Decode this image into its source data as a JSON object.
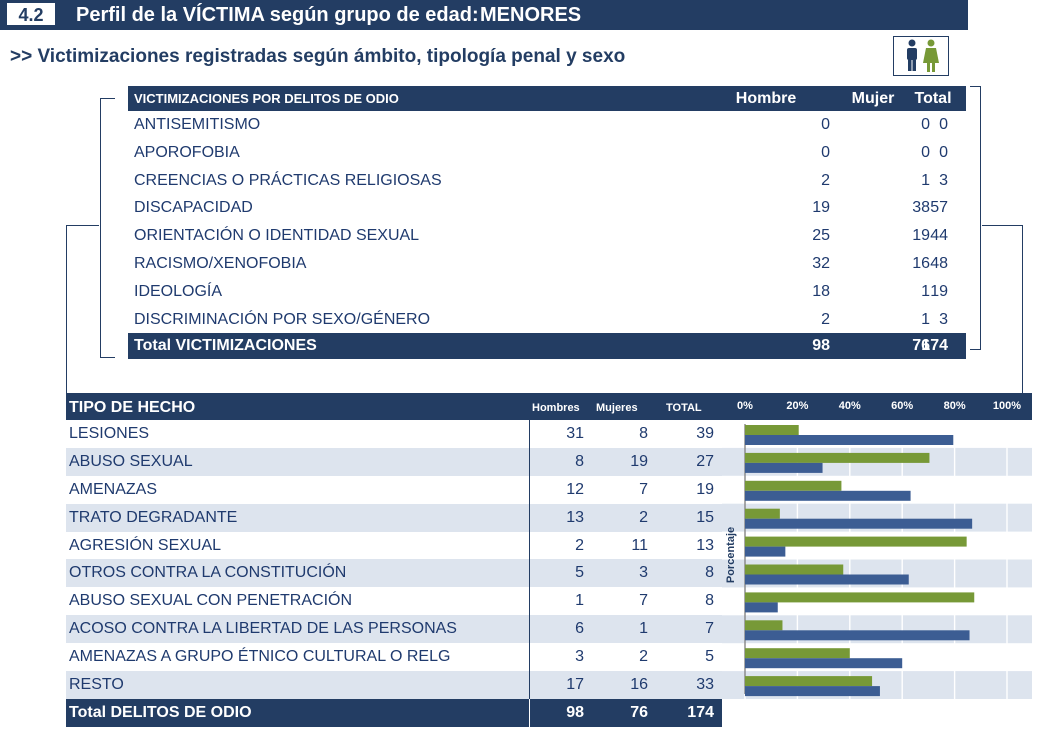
{
  "header": {
    "number": "4.2",
    "title": "Perfil de la VÍCTIMA según grupo de edad:",
    "group": "MENORES"
  },
  "subtitle": ">> Victimizaciones registradas según ámbito, tipología  penal y sexo",
  "icon": "male-female-icon",
  "colors": {
    "navy": "#233d63",
    "hombre": "#3c5d93",
    "mujer": "#779937",
    "band": "#dde4ee"
  },
  "table_ambito": {
    "headers": [
      "VICTIMIZACIONES POR DELITOS DE ODIO",
      "Hombre",
      "Mujer",
      "Total"
    ],
    "rows": [
      [
        "ANTISEMITISMO",
        "0",
        "0",
        "0"
      ],
      [
        "APOROFOBIA",
        "0",
        "0",
        "0"
      ],
      [
        "CREENCIAS O PRÁCTICAS RELIGIOSAS",
        "2",
        "1",
        "3"
      ],
      [
        "DISCAPACIDAD",
        "19",
        "38",
        "57"
      ],
      [
        "ORIENTACIÓN O IDENTIDAD SEXUAL",
        "25",
        "19",
        "44"
      ],
      [
        "RACISMO/XENOFOBIA",
        "32",
        "16",
        "48"
      ],
      [
        "IDEOLOGÍA",
        "18",
        "1",
        "19"
      ],
      [
        "DISCRIMINACIÓN POR SEXO/GÉNERO",
        "2",
        "1",
        "3"
      ]
    ],
    "total": [
      "Total VICTIMIZACIONES",
      "98",
      "76",
      "174"
    ]
  },
  "table_hecho": {
    "headers": [
      "TIPO DE HECHO",
      "Hombres",
      "Mujeres",
      "TOTAL"
    ],
    "rows": [
      [
        "LESIONES",
        "31",
        "8",
        "39"
      ],
      [
        "ABUSO SEXUAL",
        "8",
        "19",
        "27"
      ],
      [
        "AMENAZAS",
        "12",
        "7",
        "19"
      ],
      [
        "TRATO DEGRADANTE",
        "13",
        "2",
        "15"
      ],
      [
        "AGRESIÓN SEXUAL",
        "2",
        "11",
        "13"
      ],
      [
        "OTROS CONTRA LA CONSTITUCIÓN",
        "5",
        "3",
        "8"
      ],
      [
        "ABUSO SEXUAL CON PENETRACIÓN",
        "1",
        "7",
        "8"
      ],
      [
        "ACOSO CONTRA LA LIBERTAD DE LAS PERSONAS",
        "6",
        "1",
        "7"
      ],
      [
        "AMENAZAS A GRUPO ÉTNICO CULTURAL O RELG",
        "3",
        "2",
        "5"
      ],
      [
        "RESTO",
        "17",
        "16",
        "33"
      ]
    ],
    "total": [
      "Total DELITOS DE ODIO",
      "98",
      "76",
      "174"
    ]
  },
  "chart_data": {
    "type": "bar",
    "orientation": "horizontal",
    "xlabel_ticks": [
      "0%",
      "20%",
      "40%",
      "60%",
      "80%",
      "100%"
    ],
    "ylabel": "Porcentaje",
    "xlim": [
      0,
      100
    ],
    "categories": [
      "LESIONES",
      "ABUSO SEXUAL",
      "AMENAZAS",
      "TRATO DEGRADANTE",
      "AGRESIÓN SEXUAL",
      "OTROS CONTRA LA CONSTITUCIÓN",
      "ABUSO SEXUAL CON PENETRACIÓN",
      "ACOSO CONTRA LA LIBERTAD DE LAS PERSONAS",
      "AMENAZAS A GRUPO ÉTNICO CULTURAL O RELG",
      "RESTO"
    ],
    "series": [
      {
        "color": "#779937",
        "values": [
          20.5,
          70.4,
          36.8,
          13.3,
          84.6,
          37.5,
          87.5,
          14.3,
          40.0,
          48.5
        ]
      },
      {
        "color": "#3c5d93",
        "values": [
          79.5,
          29.6,
          63.2,
          86.7,
          15.4,
          62.5,
          12.5,
          85.7,
          60.0,
          51.5
        ]
      }
    ],
    "grid": true
  }
}
